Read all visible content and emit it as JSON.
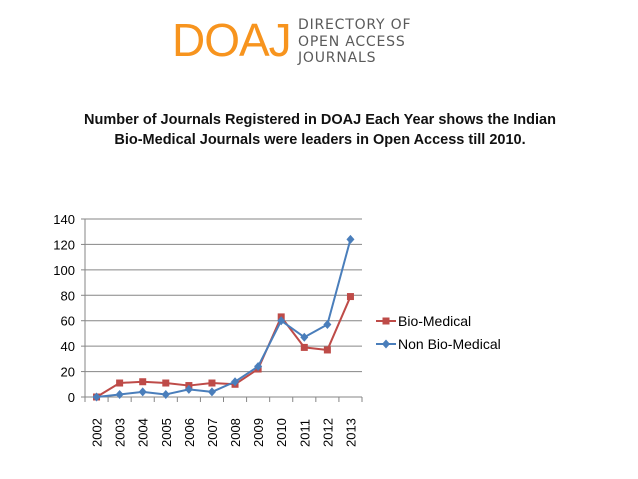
{
  "logo": {
    "mark": "DOAJ",
    "line1": "DIRECTORY OF",
    "line2": "OPEN ACCESS",
    "line3": "JOURNALS"
  },
  "colors": {
    "brand_orange": "#f7941e",
    "bio_medical": "#be4b48",
    "non_bio_medical": "#4a7ebb",
    "grid": "#868686"
  },
  "chart_data": {
    "type": "line",
    "title": "Number of Journals Registered in DOAJ Each Year shows the Indian Bio-Medical Journals were leaders in Open Access till 2010.",
    "categories": [
      "2002",
      "2003",
      "2004",
      "2005",
      "2006",
      "2007",
      "2008",
      "2009",
      "2010",
      "2011",
      "2012",
      "2013"
    ],
    "series": [
      {
        "name": "Bio-Medical",
        "marker": "square",
        "color": "#be4b48",
        "values": [
          0,
          11,
          12,
          11,
          9,
          11,
          10,
          22,
          63,
          39,
          37,
          79
        ]
      },
      {
        "name": "Non Bio-Medical",
        "marker": "diamond",
        "color": "#4a7ebb",
        "values": [
          0,
          2,
          4,
          2,
          6,
          4,
          12,
          24,
          60,
          47,
          57,
          124
        ]
      }
    ],
    "xlabel": "",
    "ylabel": "",
    "ylim": [
      0,
      140
    ],
    "yticks": [
      0,
      20,
      40,
      60,
      80,
      100,
      120,
      140
    ],
    "grid": true,
    "legend": "right"
  }
}
